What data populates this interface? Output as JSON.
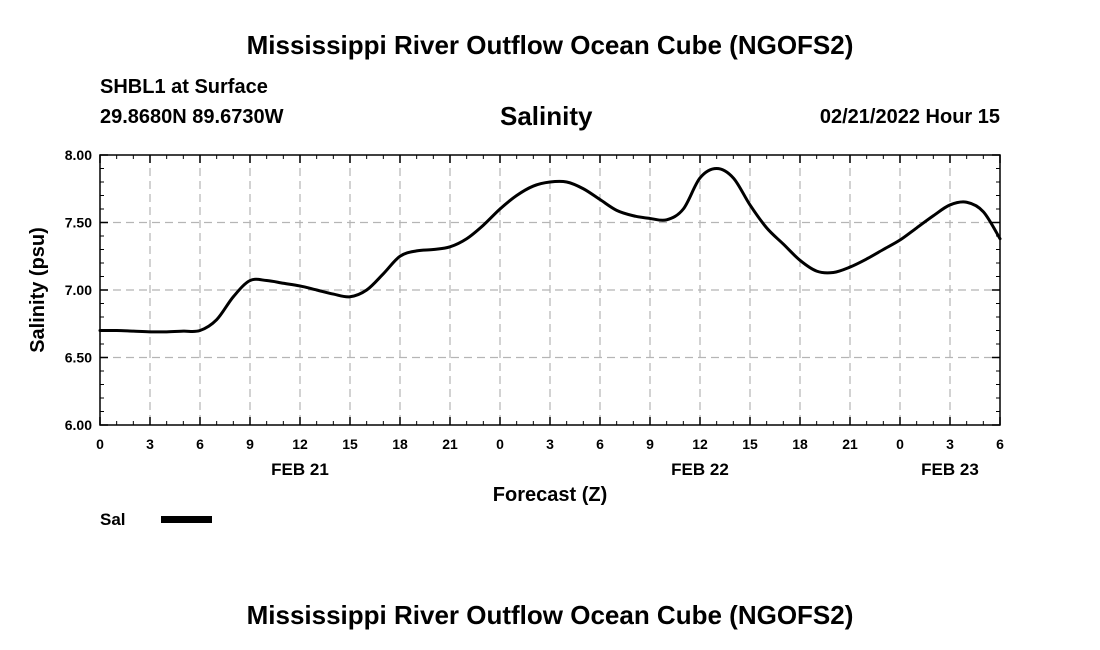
{
  "page": {
    "title_top": "Mississippi River Outflow Ocean Cube (NGOFS2)",
    "title_bottom": "Mississippi River Outflow Ocean Cube (NGOFS2)",
    "station": "SHBL1 at Surface",
    "coords": "29.8680N  89.6730W",
    "variable": "Salinity",
    "datetime": "02/21/2022 Hour 15"
  },
  "legend": {
    "label": "Sal",
    "color": "#000000"
  },
  "chart_data": {
    "type": "line",
    "title": "Salinity",
    "xlabel": "Forecast (Z)",
    "ylabel": "Salinity (psu)",
    "xlim": [
      0,
      54
    ],
    "ylim": [
      6.0,
      8.0
    ],
    "grid": true,
    "x_ticks": [
      0,
      3,
      6,
      9,
      12,
      15,
      18,
      21,
      24,
      27,
      30,
      33,
      36,
      39,
      42,
      45,
      48,
      51,
      54
    ],
    "x_tick_labels": [
      "0",
      "3",
      "6",
      "9",
      "12",
      "15",
      "18",
      "21",
      "0",
      "3",
      "6",
      "9",
      "12",
      "15",
      "18",
      "21",
      "0",
      "3",
      "6"
    ],
    "y_ticks": [
      6.0,
      6.5,
      7.0,
      7.5,
      8.0
    ],
    "y_tick_labels": [
      "6.00",
      "6.50",
      "7.00",
      "7.50",
      "8.00"
    ],
    "date_labels": [
      {
        "x": 12,
        "label": "FEB 21"
      },
      {
        "x": 36,
        "label": "FEB 22"
      },
      {
        "x": 51,
        "label": "FEB 23"
      }
    ],
    "series": [
      {
        "name": "Sal",
        "x": [
          0,
          1,
          2,
          3,
          4,
          5,
          6,
          7,
          8,
          9,
          10,
          11,
          12,
          13,
          14,
          15,
          16,
          17,
          18,
          19,
          20,
          21,
          22,
          23,
          24,
          25,
          26,
          27,
          28,
          29,
          30,
          31,
          32,
          33,
          34,
          35,
          36,
          37,
          38,
          39,
          40,
          41,
          42,
          43,
          44,
          45,
          46,
          47,
          48,
          49,
          50,
          51,
          52,
          53,
          54
        ],
        "values": [
          6.7,
          6.7,
          6.695,
          6.69,
          6.69,
          6.695,
          6.7,
          6.78,
          6.95,
          7.07,
          7.07,
          7.05,
          7.03,
          7.0,
          6.97,
          6.95,
          7.0,
          7.12,
          7.25,
          7.29,
          7.3,
          7.32,
          7.38,
          7.48,
          7.6,
          7.7,
          7.77,
          7.8,
          7.8,
          7.75,
          7.67,
          7.59,
          7.55,
          7.53,
          7.52,
          7.6,
          7.83,
          7.9,
          7.83,
          7.63,
          7.46,
          7.34,
          7.22,
          7.14,
          7.13,
          7.17,
          7.23,
          7.3,
          7.37,
          7.46,
          7.55,
          7.63,
          7.65,
          7.58,
          7.38
        ]
      }
    ]
  }
}
